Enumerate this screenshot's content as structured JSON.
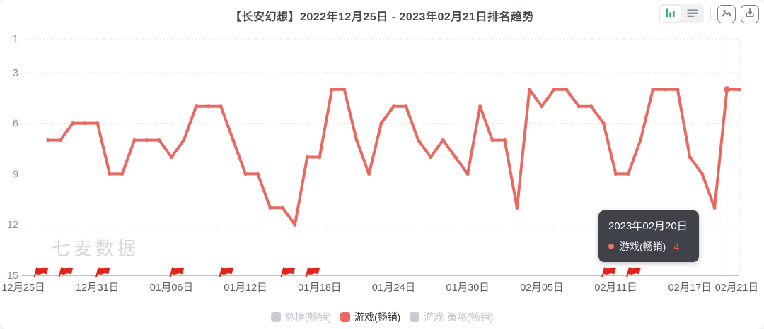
{
  "header": {
    "title": "【长安幻想】2022年12月25日 - 2023年02月21日排名趋势"
  },
  "toolbar": {
    "chart_view_icon": "bar-chart-icon",
    "list_view_icon": "list-icon",
    "export_image_icon": "image-icon",
    "download_icon": "download-icon"
  },
  "watermark": "七麦数据",
  "tooltip": {
    "date": "2023年02月20日",
    "series": "游戏(畅销)",
    "value": "4"
  },
  "legend": [
    {
      "label": "总榜(畅销)",
      "active": false
    },
    {
      "label": "游戏(畅销)",
      "active": true
    },
    {
      "label": "游戏-策略(畅销)",
      "active": false
    }
  ],
  "colors": {
    "series": "#e96961",
    "legend_active_text": "#333333",
    "legend_inactive_text": "#c0c4cc",
    "legend_inactive_swatch": "#c9cdd3",
    "flag": "#e0241b",
    "grid": "#e0e3e8",
    "axis_line": "#9aa0a6",
    "x_label": "#5b5f66",
    "y_label": "#8f959c",
    "crosshair": "#aaaaaa",
    "toolbar_green": "#34b57f",
    "toolbar_gray": "#8a9199"
  },
  "chart_data": {
    "type": "line",
    "title": "排名趋势",
    "y_axis": {
      "inverted": true,
      "range": [
        1,
        15
      ],
      "ticks": [
        1,
        3,
        6,
        9,
        12,
        15
      ],
      "grid": "dashed"
    },
    "x_axis": {
      "start_label": "12月25日",
      "end_label": "02月21日",
      "total_days": 58,
      "tick_labels": [
        "12月25日",
        "12月31日",
        "01月06日",
        "01月12日",
        "01月18日",
        "01月24日",
        "01月30日",
        "02月05日",
        "02月11日",
        "02月17日",
        "02月21日"
      ],
      "tick_day_index": [
        0,
        6,
        12,
        18,
        24,
        30,
        36,
        42,
        48,
        54,
        58
      ]
    },
    "series": [
      {
        "name": "游戏(畅销)",
        "color": "#e96961",
        "start_day_index": 2,
        "start_date_label": "12月27日",
        "values": [
          7,
          7,
          6,
          6,
          6,
          9,
          9,
          7,
          7,
          7,
          8,
          7,
          5,
          5,
          5,
          7,
          9,
          9,
          11,
          11,
          12,
          8,
          8,
          4,
          4,
          7,
          9,
          6,
          5,
          5,
          7,
          8,
          7,
          8,
          9,
          5,
          7,
          7,
          11,
          4,
          5,
          4,
          4,
          5,
          5,
          6,
          9,
          9,
          7,
          4,
          4,
          4,
          8,
          9,
          11,
          4,
          4
        ]
      }
    ],
    "hidden_series": [
      "总榜(畅销)",
      "游戏-策略(畅销)"
    ],
    "flags_day_index": [
      1,
      3,
      6,
      12,
      16,
      21,
      23,
      47,
      49
    ],
    "highlight": {
      "day_index": 57,
      "date_label": "2023年02月20日",
      "series": "游戏(畅销)",
      "value": 4
    },
    "legend_position": "bottom"
  }
}
